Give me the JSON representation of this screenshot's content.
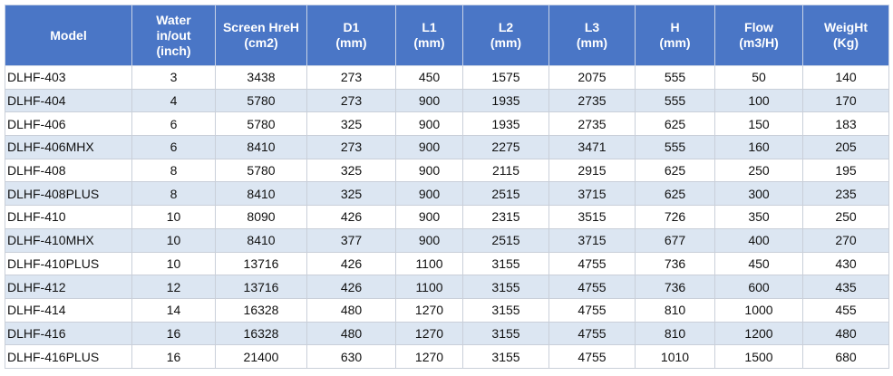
{
  "table": {
    "header": [
      "Model",
      "Water\nin/out\n(inch)",
      "Screen HreH\n(cm2)",
      "D1\n(mm)",
      "L1\n(mm)",
      "L2\n(mm)",
      "L3\n(mm)",
      "H\n(mm)",
      "Flow\n(m3/H)",
      "WeigHt\n(Kg)"
    ],
    "rows": [
      [
        "DLHF-403",
        3,
        3438,
        273,
        450,
        1575,
        2075,
        555,
        50,
        140
      ],
      [
        "DLHF-404",
        4,
        5780,
        273,
        900,
        1935,
        2735,
        555,
        100,
        170
      ],
      [
        "DLHF-406",
        6,
        5780,
        325,
        900,
        1935,
        2735,
        625,
        150,
        183
      ],
      [
        "DLHF-406MHX",
        6,
        8410,
        273,
        900,
        2275,
        3471,
        555,
        160,
        205
      ],
      [
        "DLHF-408",
        8,
        5780,
        325,
        900,
        2115,
        2915,
        625,
        250,
        195
      ],
      [
        "DLHF-408PLUS",
        8,
        8410,
        325,
        900,
        2515,
        3715,
        625,
        300,
        235
      ],
      [
        "DLHF-410",
        10,
        8090,
        426,
        900,
        2315,
        3515,
        726,
        350,
        250
      ],
      [
        "DLHF-410MHX",
        10,
        8410,
        377,
        900,
        2515,
        3715,
        677,
        400,
        270
      ],
      [
        "DLHF-410PLUS",
        10,
        13716,
        426,
        1100,
        3155,
        4755,
        736,
        450,
        430
      ],
      [
        "DLHF-412",
        12,
        13716,
        426,
        1100,
        3155,
        4755,
        736,
        600,
        435
      ],
      [
        "DLHF-414",
        14,
        16328,
        480,
        1270,
        3155,
        4755,
        810,
        1000,
        455
      ],
      [
        "DLHF-416",
        16,
        16328,
        480,
        1270,
        3155,
        4755,
        810,
        1200,
        480
      ],
      [
        "DLHF-416PLUS",
        16,
        21400,
        630,
        1270,
        3155,
        4755,
        1010,
        1500,
        680
      ]
    ]
  }
}
